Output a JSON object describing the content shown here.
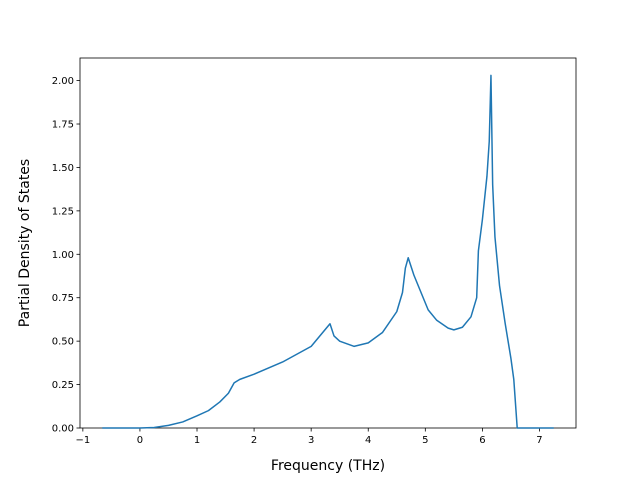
{
  "chart_data": {
    "type": "line",
    "xlabel": "Frequency (THz)",
    "ylabel": "Partial Density of States",
    "xlim": [
      -1.05,
      7.64
    ],
    "ylim": [
      0,
      2.13
    ],
    "xticks": [
      {
        "value": -1,
        "label": "−1"
      },
      0,
      1,
      2,
      3,
      4,
      5,
      6,
      7
    ],
    "yticks": [
      {
        "value": 0,
        "label": "0.00"
      },
      {
        "value": 0.25,
        "label": "0.25"
      },
      {
        "value": 0.5,
        "label": "0.50"
      },
      {
        "value": 0.75,
        "label": "0.75"
      },
      {
        "value": 1,
        "label": "1.00"
      },
      {
        "value": 1.25,
        "label": "1.25"
      },
      {
        "value": 1.5,
        "label": "1.50"
      },
      {
        "value": 1.75,
        "label": "1.75"
      },
      {
        "value": 2,
        "label": "2.00"
      }
    ],
    "x": [
      -0.66,
      0,
      0.25,
      0.5,
      0.75,
      1.0,
      1.2,
      1.4,
      1.55,
      1.65,
      1.75,
      2.0,
      2.5,
      3.0,
      3.33,
      3.4,
      3.5,
      3.75,
      4.0,
      4.25,
      4.5,
      4.6,
      4.65,
      4.7,
      4.8,
      4.95,
      5.05,
      5.2,
      5.4,
      5.5,
      5.65,
      5.8,
      5.9,
      5.93,
      6.0,
      6.08,
      6.12,
      6.15,
      6.18,
      6.22,
      6.3,
      6.4,
      6.5,
      6.55,
      6.61,
      7.25
    ],
    "series": [
      {
        "color": "#1f77b4",
        "values": [
          0,
          0,
          0.003,
          0.015,
          0.035,
          0.07,
          0.1,
          0.15,
          0.2,
          0.26,
          0.28,
          0.31,
          0.38,
          0.47,
          0.6,
          0.53,
          0.5,
          0.47,
          0.49,
          0.55,
          0.67,
          0.78,
          0.92,
          0.98,
          0.88,
          0.76,
          0.68,
          0.62,
          0.575,
          0.565,
          0.58,
          0.64,
          0.75,
          1.02,
          1.2,
          1.45,
          1.65,
          2.03,
          1.4,
          1.1,
          0.82,
          0.6,
          0.4,
          0.28,
          0,
          0
        ]
      }
    ]
  }
}
